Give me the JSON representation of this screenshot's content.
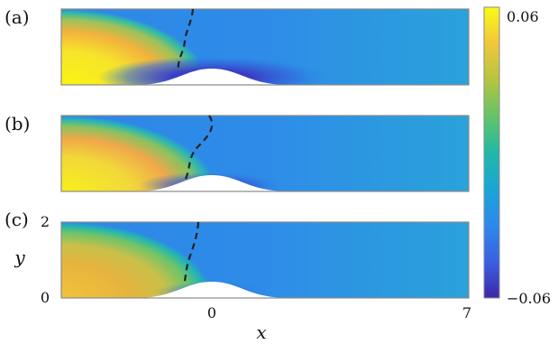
{
  "panels": [
    {
      "label": "(a)"
    },
    {
      "label": "(b)"
    },
    {
      "label": "(c)"
    }
  ],
  "axes": {
    "xlabel": "x",
    "ylabel": "y",
    "xticks": [
      "0",
      "7"
    ],
    "yticks": [
      "2",
      "0"
    ]
  },
  "colorbar": {
    "max_label": "0.06",
    "min_label": "−0.06",
    "range": [
      -0.06,
      0.06
    ],
    "colormap": "parula",
    "colors": [
      "#3e26a8",
      "#2c8ef0",
      "#20c0b0",
      "#7ecb58",
      "#f2b43c",
      "#f9fb15"
    ]
  },
  "colors": {
    "contour": "#222222",
    "frame": "#8a8a8a",
    "bump": "#ffffff"
  }
}
